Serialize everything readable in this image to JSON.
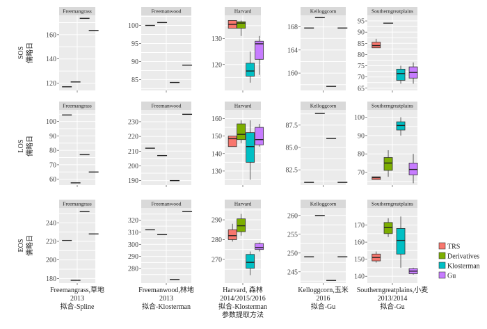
{
  "chart_data": {
    "type": "box",
    "legend_position": "right",
    "legend": [
      {
        "name": "TRS",
        "color": "#f8766d"
      },
      {
        "name": "Derivatives",
        "color": "#7cae00"
      },
      {
        "name": "Klosterman",
        "color": "#00bfc4"
      },
      {
        "name": "Gu",
        "color": "#c77cff"
      }
    ],
    "row_labels": [
      {
        "metric": "SOS",
        "unit": "儒略日"
      },
      {
        "metric": "LOS",
        "unit": "儒略日"
      },
      {
        "metric": "EOS",
        "unit": "儒略日"
      }
    ],
    "column_labels": [
      [
        "Freemangrass,草地",
        "2013",
        "拟合-Spline"
      ],
      [
        "Freemanwood,林地",
        "2013",
        "拟合-Klosterman"
      ],
      [
        "Harvard, 森林",
        "2014/2015/2016",
        "拟合-Klosterman",
        "参数提取方法"
      ],
      [
        "Kelloggcorn,玉米",
        "2016",
        "拟合-Gu"
      ],
      [
        "Southerngreatplains,小麦",
        "2013/2014",
        "拟合-Gu"
      ]
    ],
    "panels": [
      {
        "strip": "Freemangrass",
        "row": 0,
        "col": 0,
        "ylim": [
          114,
          176
        ],
        "yticks": [
          120,
          140,
          160
        ],
        "mode": "lines",
        "items": [
          {
            "value": 117
          },
          {
            "value": 121
          },
          {
            "value": 173.5
          },
          {
            "value": 163.5
          }
        ]
      },
      {
        "strip": "Freemanwood",
        "row": 0,
        "col": 1,
        "ylim": [
          82,
          102.8
        ],
        "yticks": [
          85,
          90,
          95,
          100
        ],
        "mode": "lines",
        "items": [
          {
            "value": 100
          },
          {
            "value": 100.8
          },
          {
            "value": 84.2
          },
          {
            "value": 89
          }
        ]
      },
      {
        "strip": "Harvard",
        "row": 0,
        "col": 2,
        "ylim": [
          110,
          139
        ],
        "yticks": [
          120,
          130
        ],
        "mode": "box",
        "items": [
          {
            "series": "TRS",
            "min": 134,
            "q1": 134,
            "median": 135.5,
            "q3": 137,
            "max": 137
          },
          {
            "series": "Derivatives",
            "min": 131,
            "q1": 134,
            "median": 136,
            "q3": 136.5,
            "max": 137
          },
          {
            "series": "Klosterman",
            "min": 113,
            "q1": 115.5,
            "median": 117.5,
            "q3": 120.5,
            "max": 125
          },
          {
            "series": "Gu",
            "min": 116,
            "q1": 122,
            "median": 128,
            "q3": 129,
            "max": 131
          }
        ]
      },
      {
        "strip": "Kelloggcorn",
        "row": 0,
        "col": 3,
        "ylim": [
          157,
          170
        ],
        "yticks": [
          160,
          164,
          168
        ],
        "mode": "lines",
        "items": [
          {
            "value": 167.8
          },
          {
            "value": 169.6
          },
          {
            "value": 157.7
          },
          {
            "value": 167.8
          }
        ]
      },
      {
        "strip": "Southerngreatplains",
        "row": 0,
        "col": 4,
        "ylim": [
          64,
          97.5
        ],
        "yticks": [
          65,
          70,
          75,
          80,
          85,
          90,
          95
        ],
        "mode": "box",
        "items": [
          {
            "series": "TRS",
            "min": 83,
            "q1": 83,
            "median": 84,
            "q3": 85.5,
            "max": 87
          },
          {
            "series": "Derivatives",
            "value": 94
          },
          {
            "series": "Klosterman",
            "min": 67,
            "q1": 68.5,
            "median": 71.5,
            "q3": 73.5,
            "max": 75
          },
          {
            "series": "Gu",
            "min": 67,
            "q1": 69.5,
            "median": 72,
            "q3": 74.5,
            "max": 76.5
          }
        ]
      },
      {
        "strip": "Freemangrass",
        "row": 1,
        "col": 0,
        "ylim": [
          56,
          108
        ],
        "yticks": [
          60,
          70,
          80,
          90,
          100
        ],
        "mode": "lines",
        "items": [
          {
            "value": 104.5
          },
          {
            "value": 57.5
          },
          {
            "value": 77
          },
          {
            "value": 65
          }
        ]
      },
      {
        "strip": "Freemanwood",
        "row": 1,
        "col": 1,
        "ylim": [
          187,
          238
        ],
        "yticks": [
          190,
          200,
          210,
          220,
          230
        ],
        "mode": "lines",
        "items": [
          {
            "value": 212
          },
          {
            "value": 207
          },
          {
            "value": 190
          },
          {
            "value": 235
          }
        ]
      },
      {
        "strip": "Harvard",
        "row": 1,
        "col": 2,
        "ylim": [
          122,
          165
        ],
        "yticks": [
          130,
          140,
          150,
          160
        ],
        "mode": "box",
        "items": [
          {
            "series": "TRS",
            "min": 144,
            "q1": 144,
            "median": 148.5,
            "q3": 150,
            "max": 150
          },
          {
            "series": "Derivatives",
            "min": 146,
            "q1": 148,
            "median": 151,
            "q3": 157,
            "max": 159
          },
          {
            "series": "Klosterman",
            "min": 125,
            "q1": 135,
            "median": 144,
            "q3": 152,
            "max": 159
          },
          {
            "series": "Gu",
            "min": 144,
            "q1": 145,
            "median": 148,
            "q3": 155,
            "max": 157
          }
        ]
      },
      {
        "strip": "Kelloggcorn",
        "row": 1,
        "col": 3,
        "ylim": [
          80.8,
          89.2
        ],
        "yticks": [
          82.5,
          85.0,
          87.5
        ],
        "ytick_decimals": 1,
        "mode": "lines",
        "items": [
          {
            "value": 81.1
          },
          {
            "value": 88.8
          },
          {
            "value": 86
          },
          {
            "value": 81.1
          }
        ]
      },
      {
        "strip": "Southerngreatplains",
        "row": 1,
        "col": 4,
        "ylim": [
          63,
          104
        ],
        "yticks": [
          70,
          80,
          90,
          100
        ],
        "mode": "box",
        "items": [
          {
            "series": "TRS",
            "min": 66,
            "q1": 66,
            "median": 67,
            "q3": 67.5,
            "max": 67.5
          },
          {
            "series": "Derivatives",
            "min": 67.5,
            "q1": 71,
            "median": 75,
            "q3": 78,
            "max": 82
          },
          {
            "series": "Klosterman",
            "min": 90,
            "q1": 93,
            "median": 95.5,
            "q3": 97.5,
            "max": 100
          },
          {
            "series": "Gu",
            "min": 64,
            "q1": 68.5,
            "median": 71.5,
            "q3": 75,
            "max": 80
          }
        ]
      },
      {
        "strip": "Freemangrass",
        "row": 2,
        "col": 0,
        "ylim": [
          175,
          256
        ],
        "yticks": [
          180,
          200,
          220,
          240
        ],
        "mode": "lines",
        "items": [
          {
            "value": 221
          },
          {
            "value": 178
          },
          {
            "value": 252
          },
          {
            "value": 228
          }
        ]
      },
      {
        "strip": "Freemanwood",
        "row": 2,
        "col": 1,
        "ylim": [
          268,
          330
        ],
        "yticks": [
          280,
          290,
          300,
          310,
          320
        ],
        "mode": "lines",
        "items": [
          {
            "value": 312
          },
          {
            "value": 308
          },
          {
            "value": 271
          },
          {
            "value": 327
          }
        ]
      },
      {
        "strip": "Harvard",
        "row": 2,
        "col": 2,
        "ylim": [
          258,
          296
        ],
        "yticks": [
          270,
          280,
          290
        ],
        "mode": "box",
        "items": [
          {
            "series": "TRS",
            "min": 279,
            "q1": 280,
            "median": 282,
            "q3": 285,
            "max": 288
          },
          {
            "series": "Derivatives",
            "min": 282,
            "q1": 284,
            "median": 287,
            "q3": 290.5,
            "max": 293
          },
          {
            "series": "Klosterman",
            "min": 262,
            "q1": 265.5,
            "median": 268.5,
            "q3": 272.5,
            "max": 274
          },
          {
            "series": "Gu",
            "min": 274,
            "q1": 275,
            "median": 276,
            "q3": 278,
            "max": 278.5
          }
        ]
      },
      {
        "strip": "Kelloggcorn",
        "row": 2,
        "col": 3,
        "ylim": [
          242,
          262
        ],
        "yticks": [
          245,
          250,
          255,
          260
        ],
        "mode": "lines",
        "items": [
          {
            "value": 249
          },
          {
            "value": 260
          },
          {
            "value": 242.7
          },
          {
            "value": 249
          }
        ]
      },
      {
        "strip": "Southerngreatplains",
        "row": 2,
        "col": 4,
        "ylim": [
          136,
          180
        ],
        "yticks": [
          140,
          150,
          160,
          170
        ],
        "mode": "box",
        "items": [
          {
            "series": "TRS",
            "min": 148,
            "q1": 149,
            "median": 151,
            "q3": 153,
            "max": 154.5
          },
          {
            "series": "Derivatives",
            "min": 163,
            "q1": 165,
            "median": 168.5,
            "q3": 171.5,
            "max": 174
          },
          {
            "series": "Klosterman",
            "min": 145,
            "q1": 153,
            "median": 161,
            "q3": 168,
            "max": 175
          },
          {
            "series": "Gu",
            "min": 141,
            "q1": 141.5,
            "median": 143,
            "q3": 144.5,
            "max": 145
          }
        ]
      }
    ]
  }
}
